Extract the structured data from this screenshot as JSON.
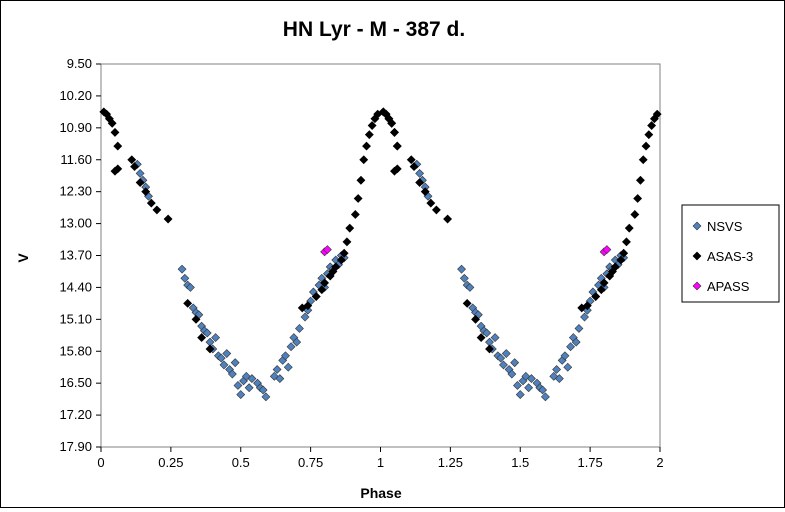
{
  "chart_data": {
    "type": "scatter",
    "title": "HN Lyr - M - 387 d.",
    "xlabel": "Phase",
    "ylabel": "V",
    "xlim": [
      0,
      2
    ],
    "ylim": [
      9.5,
      17.9
    ],
    "y_inverted": true,
    "x_ticks": [
      "0",
      "0.25",
      "0.5",
      "0.75",
      "1",
      "1.25",
      "1.5",
      "1.75",
      "2"
    ],
    "y_ticks": [
      "9.50",
      "10.20",
      "10.90",
      "11.60",
      "12.30",
      "13.00",
      "13.70",
      "14.40",
      "15.10",
      "15.80",
      "16.50",
      "17.20",
      "17.90"
    ],
    "grid": false,
    "legend_position": "right",
    "series": [
      {
        "name": "NSVS",
        "color": "#4f81bd",
        "points": [
          [
            0.13,
            11.7
          ],
          [
            0.14,
            11.9
          ],
          [
            0.15,
            12.05
          ],
          [
            0.16,
            12.2
          ],
          [
            0.17,
            12.4
          ],
          [
            0.29,
            14.0
          ],
          [
            0.3,
            14.2
          ],
          [
            0.31,
            14.35
          ],
          [
            0.32,
            14.4
          ],
          [
            0.33,
            14.85
          ],
          [
            0.34,
            14.95
          ],
          [
            0.35,
            15.0
          ],
          [
            0.36,
            15.25
          ],
          [
            0.37,
            15.35
          ],
          [
            0.38,
            15.4
          ],
          [
            0.39,
            15.6
          ],
          [
            0.4,
            15.75
          ],
          [
            0.41,
            15.5
          ],
          [
            0.42,
            15.9
          ],
          [
            0.43,
            15.95
          ],
          [
            0.44,
            16.1
          ],
          [
            0.45,
            15.85
          ],
          [
            0.46,
            16.2
          ],
          [
            0.47,
            16.3
          ],
          [
            0.48,
            16.05
          ],
          [
            0.49,
            16.55
          ],
          [
            0.5,
            16.75
          ],
          [
            0.51,
            16.45
          ],
          [
            0.52,
            16.35
          ],
          [
            0.53,
            16.6
          ],
          [
            0.54,
            16.4
          ],
          [
            0.56,
            16.5
          ],
          [
            0.57,
            16.6
          ],
          [
            0.58,
            16.65
          ],
          [
            0.59,
            16.8
          ],
          [
            0.62,
            16.35
          ],
          [
            0.63,
            16.2
          ],
          [
            0.64,
            16.4
          ],
          [
            0.65,
            16.0
          ],
          [
            0.66,
            15.9
          ],
          [
            0.67,
            16.15
          ],
          [
            0.68,
            15.7
          ],
          [
            0.69,
            15.5
          ],
          [
            0.7,
            15.6
          ],
          [
            0.71,
            15.3
          ],
          [
            0.73,
            15.05
          ],
          [
            0.74,
            14.9
          ],
          [
            0.75,
            14.7
          ],
          [
            0.76,
            14.5
          ],
          [
            0.77,
            14.6
          ],
          [
            0.78,
            14.35
          ],
          [
            0.79,
            14.2
          ],
          [
            0.8,
            14.4
          ],
          [
            0.81,
            14.1
          ],
          [
            0.82,
            13.95
          ],
          [
            0.83,
            14.0
          ],
          [
            0.84,
            13.8
          ],
          [
            0.85,
            13.9
          ],
          [
            0.86,
            13.7
          ],
          [
            0.87,
            13.75
          ]
        ]
      },
      {
        "name": "ASAS-3",
        "color": "#000000",
        "points": [
          [
            0.01,
            10.55
          ],
          [
            0.02,
            10.6
          ],
          [
            0.03,
            10.7
          ],
          [
            0.04,
            10.8
          ],
          [
            0.05,
            11.0
          ],
          [
            0.06,
            11.3
          ],
          [
            0.05,
            11.85
          ],
          [
            0.06,
            11.8
          ],
          [
            0.11,
            11.6
          ],
          [
            0.12,
            11.75
          ],
          [
            0.14,
            12.1
          ],
          [
            0.16,
            12.3
          ],
          [
            0.18,
            12.55
          ],
          [
            0.2,
            12.7
          ],
          [
            0.24,
            12.9
          ],
          [
            0.31,
            14.75
          ],
          [
            0.34,
            15.1
          ],
          [
            0.36,
            15.5
          ],
          [
            0.39,
            15.75
          ],
          [
            0.72,
            14.85
          ],
          [
            0.74,
            14.8
          ],
          [
            0.77,
            14.6
          ],
          [
            0.79,
            14.45
          ],
          [
            0.8,
            14.3
          ],
          [
            0.82,
            14.15
          ],
          [
            0.83,
            14.05
          ],
          [
            0.84,
            13.95
          ],
          [
            0.86,
            13.8
          ],
          [
            0.87,
            13.65
          ],
          [
            0.88,
            13.4
          ],
          [
            0.89,
            13.1
          ],
          [
            0.91,
            12.8
          ],
          [
            0.92,
            12.45
          ],
          [
            0.93,
            12.05
          ],
          [
            0.94,
            11.6
          ],
          [
            0.95,
            11.3
          ],
          [
            0.96,
            11.05
          ],
          [
            0.97,
            10.85
          ],
          [
            0.98,
            10.7
          ],
          [
            0.99,
            10.6
          ],
          [
            1.01,
            10.55
          ],
          [
            1.02,
            10.6
          ],
          [
            1.03,
            10.7
          ],
          [
            1.04,
            10.8
          ],
          [
            1.05,
            11.0
          ],
          [
            1.06,
            11.3
          ]
        ]
      },
      {
        "name": "APASS",
        "color": "#ff00ff",
        "points": [
          [
            0.8,
            13.62
          ],
          [
            0.81,
            13.57
          ]
        ]
      }
    ]
  }
}
